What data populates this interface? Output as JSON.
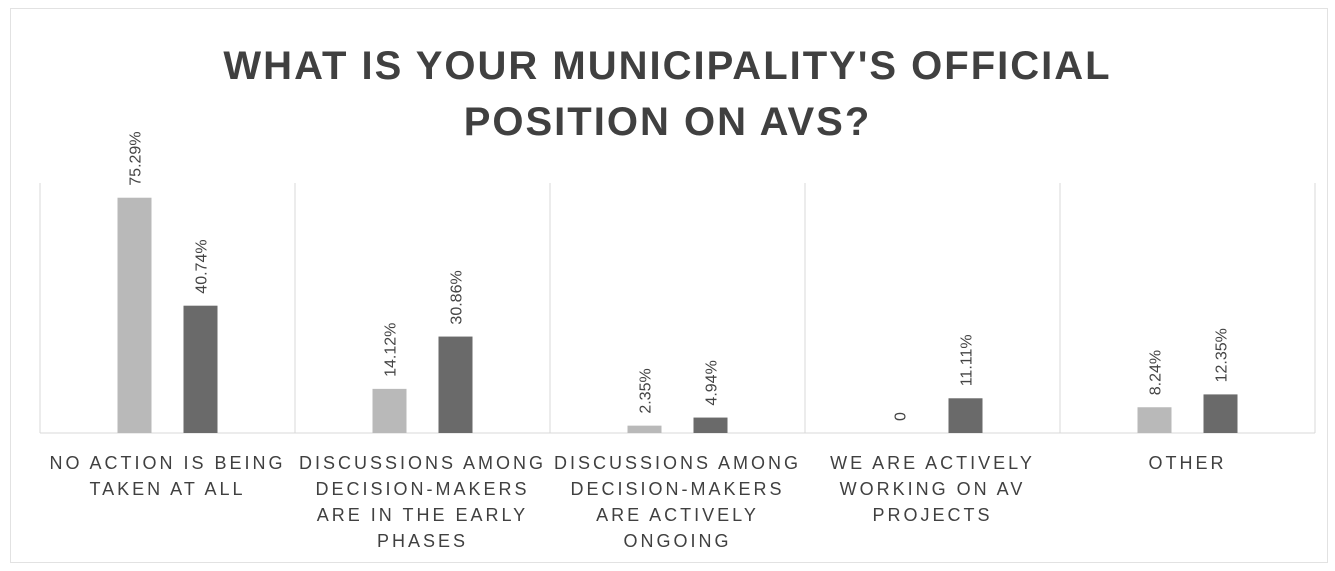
{
  "chart_data": {
    "type": "bar",
    "title": "WHAT IS YOUR MUNICIPALITY'S OFFICIAL POSITION ON AVS?",
    "categories": [
      "NO ACTION IS BEING TAKEN AT ALL",
      "DISCUSSIONS AMONG DECISION-MAKERS ARE IN THE EARLY PHASES",
      "DISCUSSIONS AMONG DECISION-MAKERS ARE ACTIVELY ONGOING",
      "WE ARE ACTIVELY WORKING ON AV PROJECTS",
      "OTHER"
    ],
    "series": [
      {
        "color": "#b9b9b9",
        "values": [
          75.29,
          14.12,
          2.35,
          0,
          8.24
        ],
        "value_labels": [
          "75.29%",
          "14.12%",
          "2.35%",
          "0",
          "8.24%"
        ]
      },
      {
        "color": "#6a6a6a",
        "values": [
          40.74,
          30.86,
          4.94,
          11.11,
          12.35
        ],
        "value_labels": [
          "40.74%",
          "30.86%",
          "4.94%",
          "11.11%",
          "12.35%"
        ]
      }
    ],
    "ylim": [
      0,
      80
    ]
  }
}
